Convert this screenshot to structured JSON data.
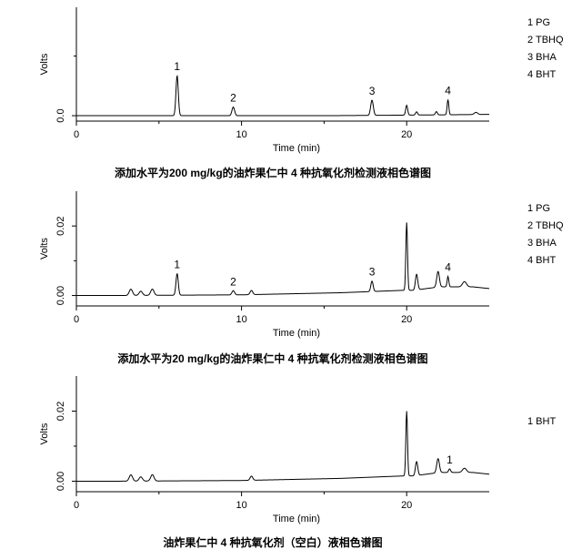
{
  "chart_data": [
    {
      "type": "line",
      "title": "添加水平为200 mg/kg的油炸果仁中 4 种抗氧化剂检测液相色谱图",
      "xlabel": "Time (min)",
      "ylabel": "Volts",
      "xlim": [
        0,
        25
      ],
      "ylim": [
        -0.005,
        0.1
      ],
      "x_ticks": [
        0,
        10,
        20
      ],
      "x_tick_labels": [
        "0",
        "10",
        "20"
      ],
      "y_ticks": [
        0.0
      ],
      "y_tick_labels": [
        "0.0"
      ],
      "legend": [
        "1 PG",
        "2 TBHQ",
        "3 BHA",
        "4 BHT"
      ],
      "legend_position": "right",
      "peak_labels": [
        {
          "label": "1",
          "x": 6.1
        },
        {
          "label": "2",
          "x": 9.5
        },
        {
          "label": "3",
          "x": 17.9
        },
        {
          "label": "4",
          "x": 22.5
        }
      ],
      "baseline": 0.0,
      "peaks": [
        {
          "x": 6.1,
          "h": 0.037,
          "w": 0.07
        },
        {
          "x": 9.5,
          "h": 0.008,
          "w": 0.08
        },
        {
          "x": 17.9,
          "h": 0.014,
          "w": 0.08
        },
        {
          "x": 20.0,
          "h": 0.009,
          "w": 0.06
        },
        {
          "x": 20.6,
          "h": 0.003,
          "w": 0.06
        },
        {
          "x": 21.8,
          "h": 0.003,
          "w": 0.06
        },
        {
          "x": 22.5,
          "h": 0.014,
          "w": 0.05
        },
        {
          "x": 24.2,
          "h": 0.002,
          "w": 0.1
        }
      ],
      "drift": [
        [
          0,
          0.0
        ],
        [
          15,
          0.0
        ],
        [
          20,
          0.0005
        ],
        [
          25,
          0.0012
        ]
      ]
    },
    {
      "type": "line",
      "title": "添加水平为20 mg/kg的油炸果仁中 4 种抗氧化剂检测液相色谱图",
      "xlabel": "Time (min)",
      "ylabel": "Volts",
      "xlim": [
        0,
        25
      ],
      "ylim": [
        -0.003,
        0.03
      ],
      "x_ticks": [
        0,
        10,
        20
      ],
      "x_tick_labels": [
        "0",
        "10",
        "20"
      ],
      "y_ticks": [
        0.0,
        0.02
      ],
      "y_tick_labels": [
        "0.00",
        "0.02"
      ],
      "legend": [
        "1 PG",
        "2 TBHQ",
        "3 BHA",
        "4 BHT"
      ],
      "legend_position": "right",
      "peak_labels": [
        {
          "label": "1",
          "x": 6.1
        },
        {
          "label": "2",
          "x": 9.5
        },
        {
          "label": "3",
          "x": 17.9
        },
        {
          "label": "4",
          "x": 22.5
        }
      ],
      "baseline": 0.0,
      "peaks": [
        {
          "x": 3.3,
          "h": 0.0018,
          "w": 0.1
        },
        {
          "x": 3.9,
          "h": 0.0012,
          "w": 0.1
        },
        {
          "x": 4.6,
          "h": 0.0018,
          "w": 0.1
        },
        {
          "x": 6.1,
          "h": 0.0062,
          "w": 0.07
        },
        {
          "x": 9.5,
          "h": 0.0012,
          "w": 0.08
        },
        {
          "x": 10.6,
          "h": 0.0012,
          "w": 0.08
        },
        {
          "x": 17.9,
          "h": 0.003,
          "w": 0.07
        },
        {
          "x": 20.0,
          "h": 0.0195,
          "w": 0.05
        },
        {
          "x": 20.6,
          "h": 0.0045,
          "w": 0.07
        },
        {
          "x": 21.9,
          "h": 0.0045,
          "w": 0.08
        },
        {
          "x": 22.5,
          "h": 0.003,
          "w": 0.05
        },
        {
          "x": 23.5,
          "h": 0.0015,
          "w": 0.12
        }
      ],
      "drift": [
        [
          0,
          0.0
        ],
        [
          2.5,
          0.0
        ],
        [
          10,
          0.0002
        ],
        [
          16,
          0.0008
        ],
        [
          19.8,
          0.0015
        ],
        [
          20.4,
          0.0015
        ],
        [
          22,
          0.0025
        ],
        [
          24,
          0.0025
        ],
        [
          25,
          0.002
        ]
      ]
    },
    {
      "type": "line",
      "title": "油炸果仁中 4 种抗氧化剂（空白）液相色谱图",
      "xlabel": "Time (min)",
      "ylabel": "Volts",
      "xlim": [
        0,
        25
      ],
      "ylim": [
        -0.003,
        0.03
      ],
      "x_ticks": [
        0,
        10,
        20
      ],
      "x_tick_labels": [
        "0",
        "10",
        "20"
      ],
      "y_ticks": [
        0.0,
        0.02
      ],
      "y_tick_labels": [
        "0.00",
        "0.02"
      ],
      "legend": [
        "1 BHT"
      ],
      "legend_position": "right",
      "peak_labels": [
        {
          "label": "1",
          "x": 22.6
        }
      ],
      "baseline": 0.0,
      "peaks": [
        {
          "x": 3.3,
          "h": 0.0018,
          "w": 0.1
        },
        {
          "x": 3.9,
          "h": 0.0012,
          "w": 0.1
        },
        {
          "x": 4.6,
          "h": 0.0018,
          "w": 0.1
        },
        {
          "x": 10.6,
          "h": 0.0012,
          "w": 0.08
        },
        {
          "x": 20.0,
          "h": 0.0185,
          "w": 0.05
        },
        {
          "x": 20.6,
          "h": 0.004,
          "w": 0.07
        },
        {
          "x": 21.9,
          "h": 0.004,
          "w": 0.08
        },
        {
          "x": 22.6,
          "h": 0.001,
          "w": 0.06
        },
        {
          "x": 23.5,
          "h": 0.0012,
          "w": 0.12
        }
      ],
      "drift": [
        [
          0,
          0.0
        ],
        [
          2.5,
          0.0
        ],
        [
          10,
          0.0002
        ],
        [
          16,
          0.0008
        ],
        [
          19.8,
          0.0015
        ],
        [
          20.4,
          0.0015
        ],
        [
          22,
          0.0025
        ],
        [
          24,
          0.0025
        ],
        [
          25,
          0.002
        ]
      ]
    }
  ]
}
